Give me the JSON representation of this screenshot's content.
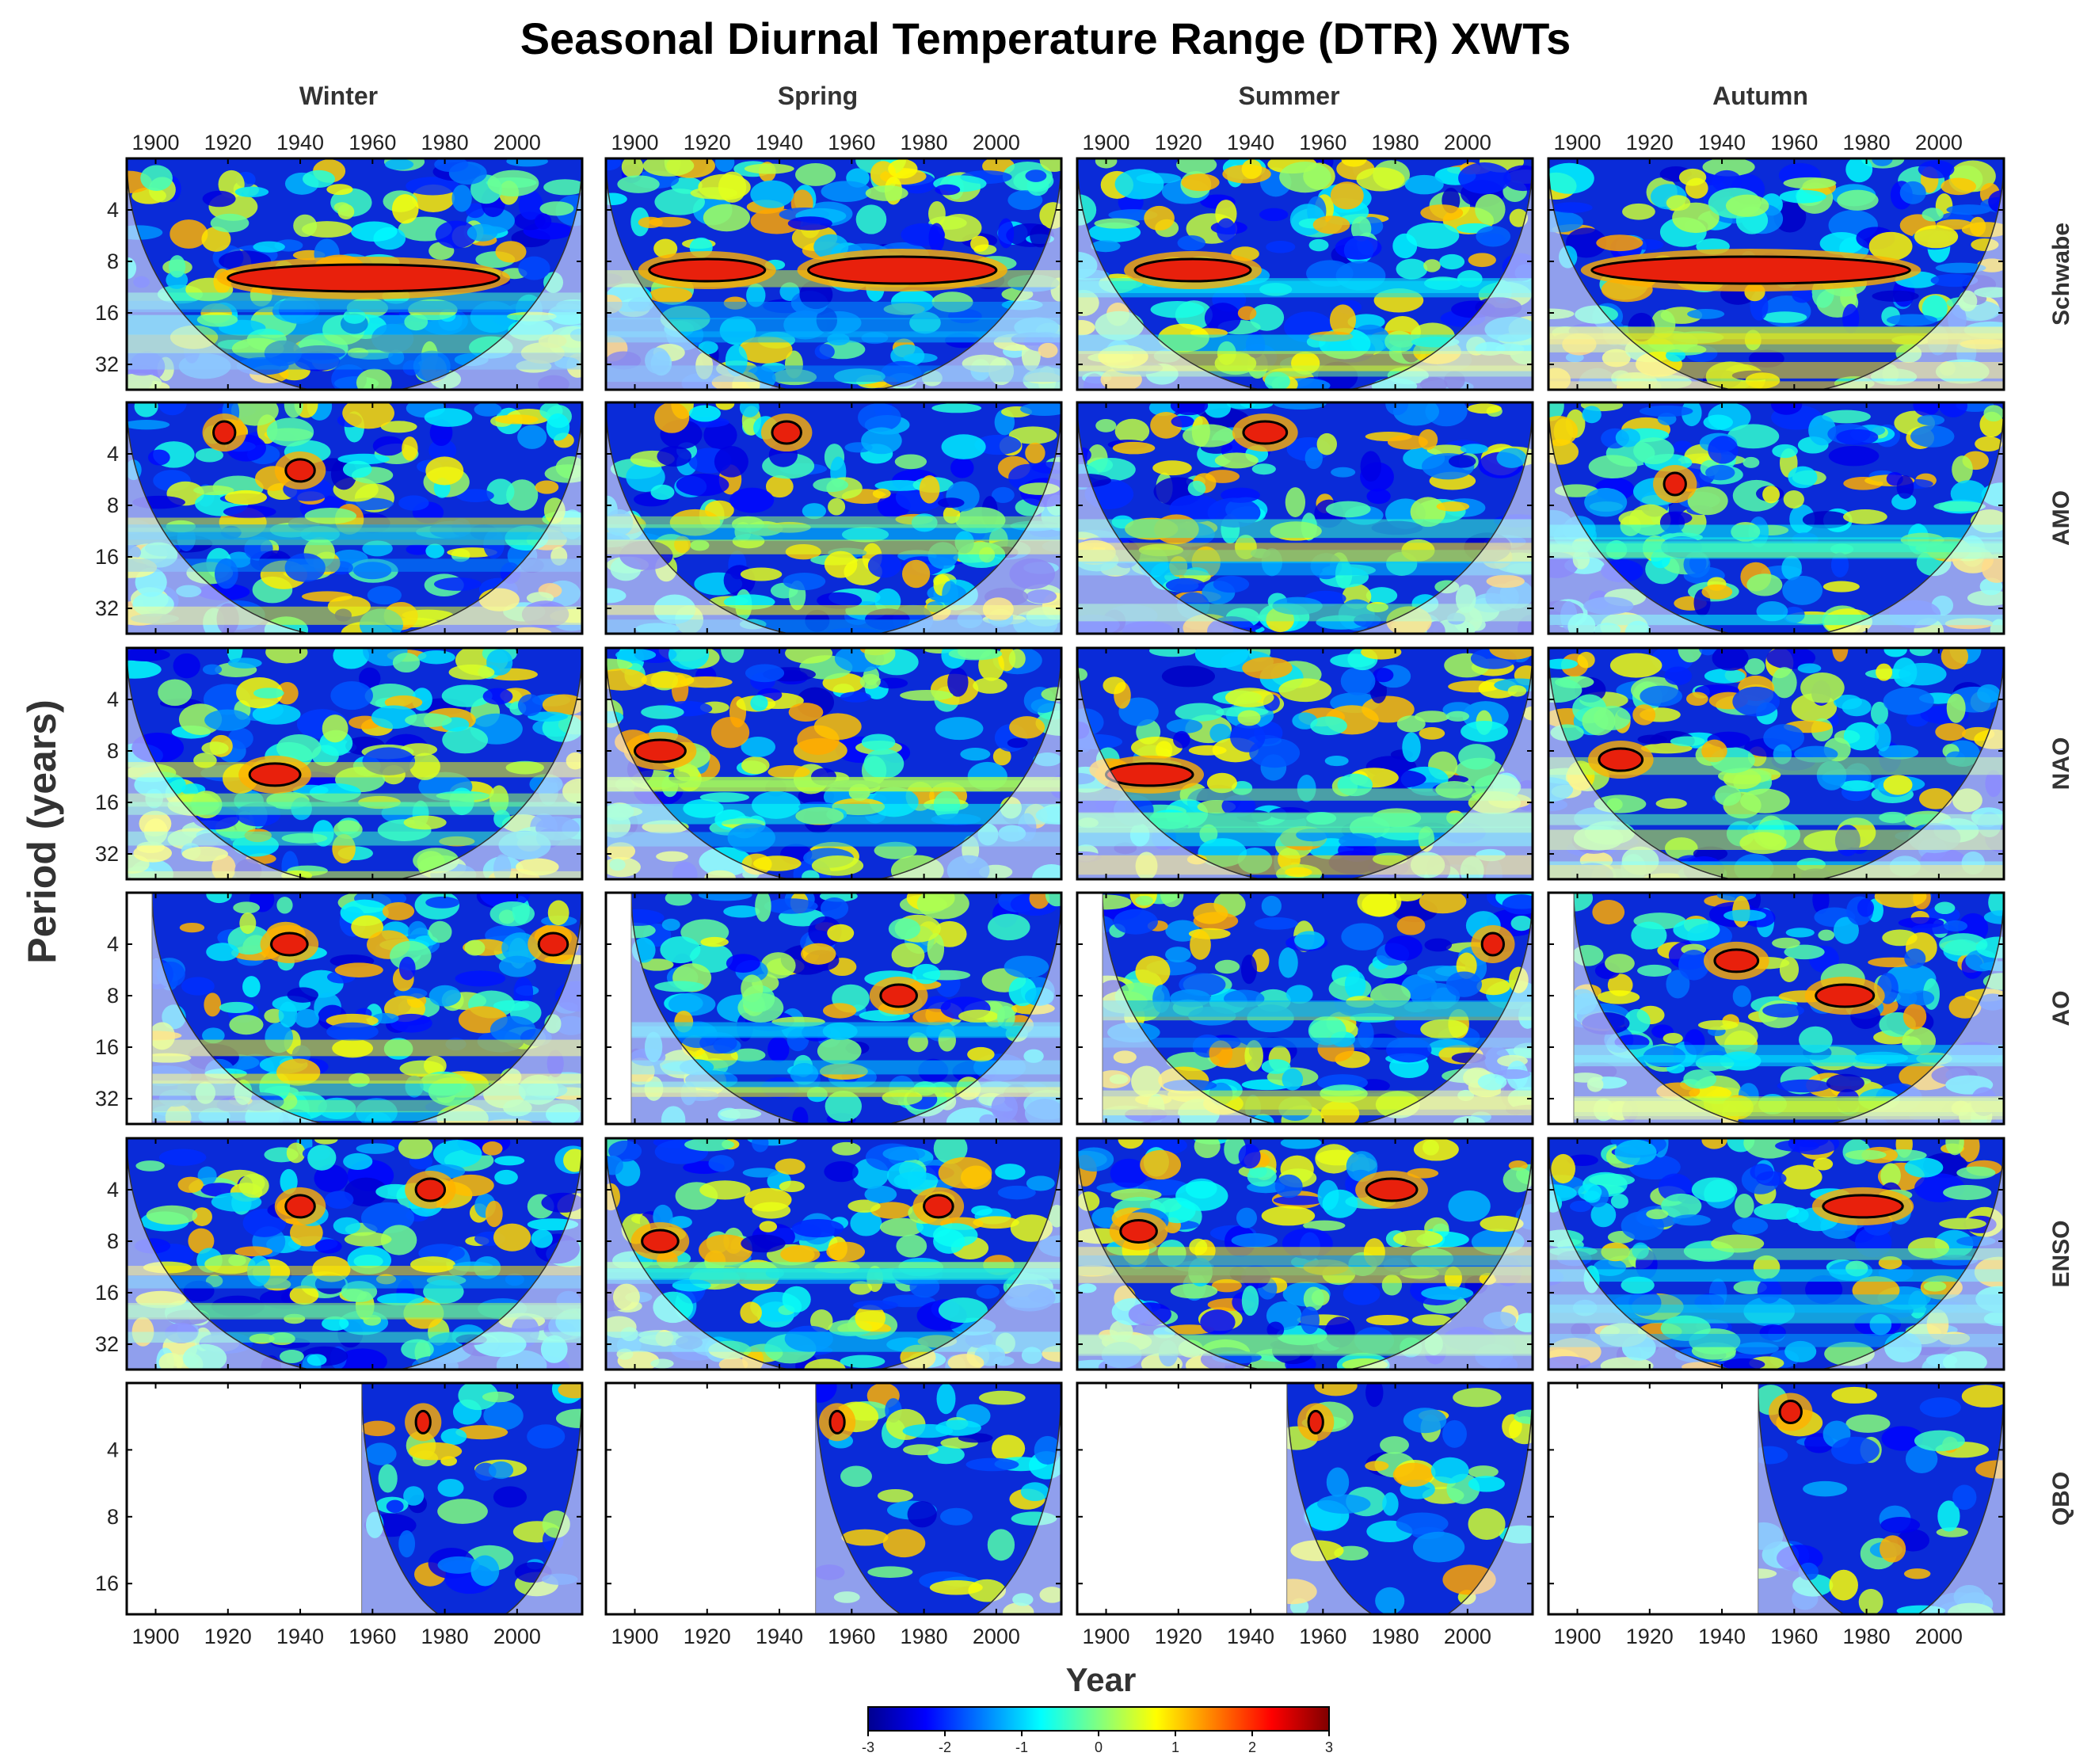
{
  "chart_data": {
    "type": "heatmap",
    "title": "Seasonal Diurnal Temperature Range (DTR) XWTs",
    "xlabel": "Year",
    "ylabel": "Period (years)",
    "columns": [
      "Winter",
      "Spring",
      "Summer",
      "Autumn"
    ],
    "rows": [
      "Schwabe",
      "AMO",
      "NAO",
      "AO",
      "ENSO",
      "QBO"
    ],
    "x_ticks": [
      1900,
      1920,
      1940,
      1960,
      1980,
      2000
    ],
    "xlim": [
      1892,
      2018
    ],
    "y_ticks": [
      4,
      8,
      16,
      32
    ],
    "y_ticks_qbo": [
      4,
      8,
      16
    ],
    "ylim_period": [
      2,
      45
    ],
    "ylim_period_qbo": [
      2,
      22
    ],
    "data_start_year": {
      "Schwabe": [
        1892,
        1892,
        1892,
        1892
      ],
      "AMO": [
        1892,
        1892,
        1892,
        1892
      ],
      "NAO": [
        1892,
        1892,
        1892,
        1892
      ],
      "AO": [
        1899,
        1899,
        1899,
        1899
      ],
      "ENSO": [
        1892,
        1892,
        1892,
        1892
      ],
      "QBO": [
        1957,
        1950,
        1950,
        1950
      ]
    },
    "colorbar": {
      "min": -3,
      "max": 3,
      "ticks": [
        "-3",
        "-2",
        "-1",
        "0",
        "1",
        "2",
        "3"
      ],
      "colormap": "jet"
    },
    "significant_regions": {
      "Winter": {
        "Schwabe": [
          {
            "year_start": 1920,
            "year_end": 1995,
            "period": 10
          }
        ],
        "AMO": [
          {
            "year_start": 1936,
            "year_end": 1944,
            "period": 5
          },
          {
            "year_start": 1916,
            "year_end": 1922,
            "period": 3
          }
        ],
        "NAO": [
          {
            "year_start": 1926,
            "year_end": 1940,
            "period": 11
          }
        ],
        "AO": [
          {
            "year_start": 1932,
            "year_end": 1942,
            "period": 4
          },
          {
            "year_start": 2006,
            "year_end": 2014,
            "period": 4
          }
        ],
        "ENSO": [
          {
            "year_start": 1936,
            "year_end": 1944,
            "period": 5
          },
          {
            "year_start": 1972,
            "year_end": 1980,
            "period": 4
          }
        ],
        "QBO": [
          {
            "year_start": 1972,
            "year_end": 1976,
            "period": 3
          }
        ]
      },
      "Spring": {
        "Schwabe": [
          {
            "year_start": 1904,
            "year_end": 1936,
            "period": 9
          },
          {
            "year_start": 1948,
            "year_end": 2000,
            "period": 9
          }
        ],
        "AMO": [
          {
            "year_start": 1938,
            "year_end": 1946,
            "period": 3
          }
        ],
        "NAO": [
          {
            "year_start": 1900,
            "year_end": 1914,
            "period": 8
          }
        ],
        "AO": [
          {
            "year_start": 1968,
            "year_end": 1978,
            "period": 8
          }
        ],
        "ENSO": [
          {
            "year_start": 1902,
            "year_end": 1912,
            "period": 8
          },
          {
            "year_start": 1980,
            "year_end": 1988,
            "period": 5
          }
        ],
        "QBO": [
          {
            "year_start": 1954,
            "year_end": 1958,
            "period": 3
          }
        ]
      },
      "Summer": {
        "Schwabe": [
          {
            "year_start": 1908,
            "year_end": 1940,
            "period": 9
          }
        ],
        "AMO": [
          {
            "year_start": 1938,
            "year_end": 1950,
            "period": 3
          }
        ],
        "NAO": [
          {
            "year_start": 1900,
            "year_end": 1924,
            "period": 11
          }
        ],
        "AO": [
          {
            "year_start": 2004,
            "year_end": 2010,
            "period": 4
          }
        ],
        "ENSO": [
          {
            "year_start": 1904,
            "year_end": 1914,
            "period": 7
          },
          {
            "year_start": 1972,
            "year_end": 1986,
            "period": 4
          }
        ],
        "QBO": [
          {
            "year_start": 1956,
            "year_end": 1960,
            "period": 3
          }
        ]
      },
      "Autumn": {
        "Schwabe": [
          {
            "year_start": 1904,
            "year_end": 1992,
            "period": 9
          }
        ],
        "AMO": [
          {
            "year_start": 1924,
            "year_end": 1930,
            "period": 6
          }
        ],
        "NAO": [
          {
            "year_start": 1906,
            "year_end": 1918,
            "period": 9
          }
        ],
        "AO": [
          {
            "year_start": 1938,
            "year_end": 1950,
            "period": 5
          },
          {
            "year_start": 1966,
            "year_end": 1982,
            "period": 8
          }
        ],
        "ENSO": [
          {
            "year_start": 1968,
            "year_end": 1990,
            "period": 5
          }
        ],
        "QBO": [
          {
            "year_start": 1956,
            "year_end": 1962,
            "period": 2.7
          }
        ]
      }
    }
  }
}
